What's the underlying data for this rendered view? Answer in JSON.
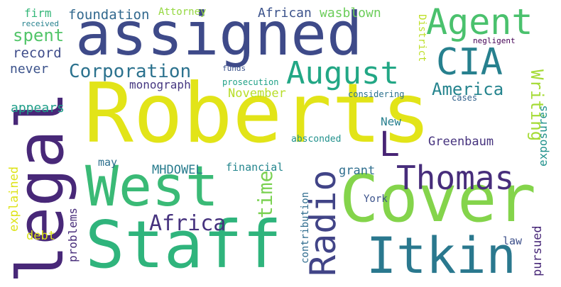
{
  "words": [
    {
      "text": "Roberts",
      "color": "#e2e418"
    },
    {
      "text": "assigned",
      "color": "#3e4a89"
    },
    {
      "text": "legal",
      "color": "#482878"
    },
    {
      "text": "West",
      "color": "#3aba76"
    },
    {
      "text": "Cover",
      "color": "#84d44b"
    },
    {
      "text": "Staff",
      "color": "#2fb47c"
    },
    {
      "text": "Itkin",
      "color": "#2a788e"
    },
    {
      "text": "Thomas",
      "color": "#472d7b"
    },
    {
      "text": "Agent",
      "color": "#4ac16d"
    },
    {
      "text": "CIA",
      "color": "#27808e"
    },
    {
      "text": "August",
      "color": "#22a785"
    },
    {
      "text": "Radio",
      "color": "#414487"
    },
    {
      "text": "L",
      "color": "#482475"
    },
    {
      "text": "Corporation",
      "color": "#2c728e"
    },
    {
      "text": "Africa",
      "color": "#46327e"
    },
    {
      "text": "Writing",
      "color": "#a5db36"
    },
    {
      "text": "America",
      "color": "#25848e"
    },
    {
      "text": "spent",
      "color": "#52c569"
    },
    {
      "text": "time",
      "color": "#7ad151"
    },
    {
      "text": "foundation",
      "color": "#31688e"
    },
    {
      "text": "African",
      "color": "#3b528b"
    },
    {
      "text": "wasblown",
      "color": "#6ccd5a"
    },
    {
      "text": "record",
      "color": "#3e4c8a"
    },
    {
      "text": "monograph",
      "color": "#453781"
    },
    {
      "text": "November",
      "color": "#b8de29"
    },
    {
      "text": "appears",
      "color": "#1f9e89"
    },
    {
      "text": "never",
      "color": "#3b528b"
    },
    {
      "text": "firm",
      "color": "#35b779"
    },
    {
      "text": "Attorney",
      "color": "#95d840"
    },
    {
      "text": "received",
      "color": "#26828e"
    },
    {
      "text": "District",
      "color": "#bddf26"
    },
    {
      "text": "negligent",
      "color": "#440154"
    },
    {
      "text": "funds",
      "color": "#3b528b"
    },
    {
      "text": "prosecution",
      "color": "#1fa187"
    },
    {
      "text": "considering",
      "color": "#2c728e"
    },
    {
      "text": "cases",
      "color": "#33638d"
    },
    {
      "text": "exposures",
      "color": "#21918c"
    },
    {
      "text": "New",
      "color": "#277f8e"
    },
    {
      "text": "absconded",
      "color": "#21918c"
    },
    {
      "text": "Greenbaum",
      "color": "#46337e"
    },
    {
      "text": "grant",
      "color": "#2e6e8e"
    },
    {
      "text": "explained",
      "color": "#dde318"
    },
    {
      "text": "may",
      "color": "#2d708e"
    },
    {
      "text": "MHDOWEL",
      "color": "#287c8e"
    },
    {
      "text": "financial",
      "color": "#24868e"
    },
    {
      "text": "problems",
      "color": "#472c7a"
    },
    {
      "text": "debt",
      "color": "#d8e219"
    },
    {
      "text": "contribution",
      "color": "#2f6c8e"
    },
    {
      "text": "York",
      "color": "#3b528b"
    },
    {
      "text": "law",
      "color": "#3c4f8a"
    },
    {
      "text": "pursued",
      "color": "#482878"
    }
  ]
}
